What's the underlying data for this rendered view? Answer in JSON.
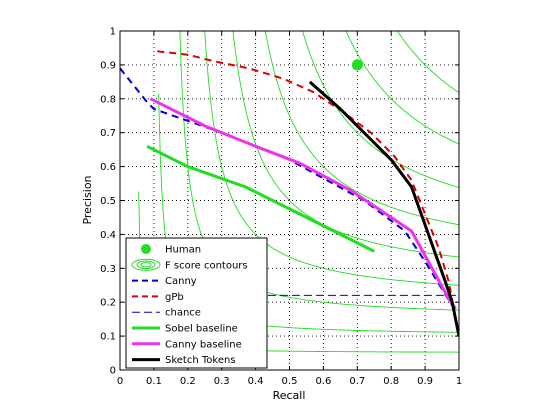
{
  "chart_data": {
    "type": "line",
    "xlabel": "Recall",
    "ylabel": "Precision",
    "xlim": [
      0,
      1
    ],
    "ylim": [
      0,
      1
    ],
    "xticks": [
      "0",
      "0.1",
      "0.2",
      "0.3",
      "0.4",
      "0.5",
      "0.6",
      "0.7",
      "0.8",
      "0.9",
      "1"
    ],
    "yticks": [
      "0",
      "0.1",
      "0.2",
      "0.3",
      "0.4",
      "0.5",
      "0.6",
      "0.7",
      "0.8",
      "0.9",
      "1"
    ],
    "grid": "dotted",
    "legend_position": "bottom-left",
    "f_score_contours": [
      0.1,
      0.2,
      0.3,
      0.4,
      0.5,
      0.6,
      0.7,
      0.8,
      0.9
    ],
    "human_point": {
      "x": 0.7,
      "y": 0.9
    },
    "series": [
      {
        "name": "Canny",
        "color": "#0000cc",
        "style": "dashed",
        "points": [
          [
            0.0,
            0.89
          ],
          [
            0.08,
            0.79
          ],
          [
            0.1,
            0.77
          ],
          [
            0.3,
            0.7
          ],
          [
            0.5,
            0.62
          ],
          [
            0.72,
            0.5
          ],
          [
            0.84,
            0.41
          ],
          [
            0.9,
            0.32
          ],
          [
            0.98,
            0.19
          ]
        ]
      },
      {
        "name": "gPb",
        "color": "#dd0000",
        "style": "dashed",
        "points": [
          [
            0.11,
            0.94
          ],
          [
            0.2,
            0.93
          ],
          [
            0.28,
            0.91
          ],
          [
            0.38,
            0.89
          ],
          [
            0.48,
            0.86
          ],
          [
            0.57,
            0.82
          ],
          [
            0.66,
            0.76
          ],
          [
            0.74,
            0.7
          ],
          [
            0.81,
            0.63
          ],
          [
            0.86,
            0.56
          ],
          [
            0.9,
            0.46
          ],
          [
            0.94,
            0.36
          ],
          [
            0.97,
            0.26
          ],
          [
            0.99,
            0.15
          ],
          [
            1.0,
            0.1
          ]
        ]
      },
      {
        "name": "chance",
        "color": "#0000cc",
        "style": "dashed-thin",
        "points": [
          [
            0.33,
            0.22
          ],
          [
            1.0,
            0.22
          ]
        ]
      },
      {
        "name": "Sobel baseline",
        "color": "#22dd22",
        "style": "solid",
        "points": [
          [
            0.08,
            0.66
          ],
          [
            0.2,
            0.6
          ],
          [
            0.37,
            0.54
          ],
          [
            0.55,
            0.45
          ],
          [
            0.75,
            0.35
          ]
        ]
      },
      {
        "name": "Canny baseline",
        "color": "#ee33ee",
        "style": "solid",
        "points": [
          [
            0.09,
            0.8
          ],
          [
            0.25,
            0.72
          ],
          [
            0.4,
            0.66
          ],
          [
            0.53,
            0.61
          ],
          [
            0.68,
            0.53
          ],
          [
            0.86,
            0.41
          ],
          [
            0.97,
            0.21
          ],
          [
            0.99,
            0.18
          ]
        ]
      },
      {
        "name": "Sketch Tokens",
        "color": "#000000",
        "style": "solid",
        "points": [
          [
            0.56,
            0.85
          ],
          [
            0.65,
            0.77
          ],
          [
            0.74,
            0.68
          ],
          [
            0.8,
            0.62
          ],
          [
            0.86,
            0.54
          ],
          [
            0.91,
            0.4
          ],
          [
            0.96,
            0.26
          ],
          [
            0.98,
            0.2
          ],
          [
            1.0,
            0.1
          ]
        ]
      }
    ],
    "legend": [
      {
        "label": "Human",
        "kind": "dot",
        "color": "#22dd22"
      },
      {
        "label": "F score contours",
        "kind": "contour",
        "color": "#22dd22"
      },
      {
        "label": "Canny",
        "kind": "line",
        "color": "#0000cc",
        "style": "dashed"
      },
      {
        "label": "gPb",
        "kind": "line",
        "color": "#dd0000",
        "style": "dashed"
      },
      {
        "label": "chance",
        "kind": "line",
        "color": "#0000cc",
        "style": "dashed-thin"
      },
      {
        "label": "Sobel baseline",
        "kind": "line",
        "color": "#22dd22",
        "style": "solid"
      },
      {
        "label": "Canny baseline",
        "kind": "line",
        "color": "#ee33ee",
        "style": "solid"
      },
      {
        "label": "Sketch Tokens",
        "kind": "line",
        "color": "#000000",
        "style": "solid"
      }
    ]
  }
}
